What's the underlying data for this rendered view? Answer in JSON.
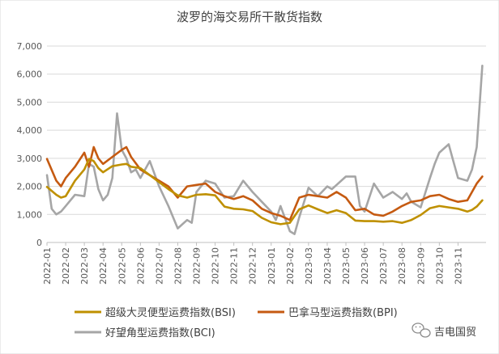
{
  "chart_data": {
    "type": "line",
    "title": "波罗的海交易所干散货指数",
    "xlabel": "",
    "ylabel": "",
    "ylim": [
      0,
      7000
    ],
    "yticks": [
      0,
      1000,
      2000,
      3000,
      4000,
      5000,
      6000,
      7000
    ],
    "ytick_labels": [
      "0",
      "1,000",
      "2,000",
      "3,000",
      "4,000",
      "5,000",
      "6,000",
      "7,000"
    ],
    "x_range": [
      0,
      47
    ],
    "x_ticks": [
      "2022-01",
      "2022-02",
      "2022-03",
      "2022-04",
      "2022-05",
      "2022-06",
      "2022-07",
      "2022-08",
      "2022-09",
      "2022-10",
      "2022-11",
      "2022-12",
      "2023-01",
      "2023-02",
      "2023-03",
      "2023-04",
      "2023-05",
      "2023-06",
      "2023-07",
      "2023-08",
      "2023-09",
      "2023-10",
      "2023-11"
    ],
    "legend_position": "bottom",
    "series": [
      {
        "name": "超级大灵便型运费指数(BSI)",
        "color": "#BF9000",
        "x": [
          0,
          1,
          1.5,
          2,
          3,
          4,
          4.5,
          5,
          5.5,
          6,
          7,
          8,
          8.5,
          9,
          10,
          11,
          12,
          13,
          14,
          15,
          16,
          17,
          18,
          19,
          20,
          21,
          22,
          23,
          24,
          25,
          26,
          27,
          28,
          29,
          30,
          31,
          32,
          33,
          34,
          35,
          36,
          37,
          38,
          39,
          40,
          41,
          42,
          43,
          44,
          45,
          45.5,
          46,
          46.6
        ],
        "y": [
          1980,
          1700,
          1600,
          1650,
          2200,
          2600,
          2980,
          2900,
          2650,
          2500,
          2720,
          2780,
          2800,
          2700,
          2650,
          2400,
          2150,
          1900,
          1680,
          1600,
          1700,
          1720,
          1680,
          1280,
          1200,
          1180,
          1120,
          880,
          720,
          650,
          700,
          1180,
          1320,
          1180,
          1050,
          1150,
          1050,
          780,
          760,
          760,
          740,
          760,
          700,
          800,
          980,
          1220,
          1300,
          1250,
          1200,
          1100,
          1160,
          1280,
          1500
        ]
      },
      {
        "name": "巴拿马型运费指数(BPI)",
        "color": "#C55A11",
        "x": [
          0,
          1,
          1.5,
          2,
          3,
          4,
          4.5,
          5,
          5.5,
          6,
          7,
          8,
          8.5,
          9,
          10,
          11,
          12,
          13,
          14,
          15,
          16,
          17,
          18,
          19,
          20,
          21,
          22,
          23,
          24,
          25,
          26,
          27,
          28,
          29,
          30,
          31,
          32,
          33,
          34,
          35,
          36,
          37,
          38,
          39,
          40,
          41,
          42,
          43,
          44,
          45,
          45.5,
          46,
          46.6
        ],
        "y": [
          2980,
          2200,
          2000,
          2300,
          2700,
          3200,
          2700,
          3400,
          3000,
          2800,
          3050,
          3300,
          3400,
          3050,
          2600,
          2400,
          2200,
          2000,
          1600,
          2000,
          2050,
          2100,
          1800,
          1650,
          1550,
          1650,
          1500,
          1200,
          1050,
          950,
          800,
          1600,
          1700,
          1650,
          1600,
          1800,
          1600,
          1150,
          1200,
          1000,
          950,
          1100,
          1300,
          1450,
          1500,
          1650,
          1700,
          1550,
          1450,
          1500,
          1800,
          2100,
          2350
        ]
      },
      {
        "name": "好望角型运费指数(BCI)",
        "color": "#A6A6A6",
        "x": [
          0,
          0.5,
          1,
          1.5,
          2,
          3,
          4,
          4.5,
          5,
          5.5,
          6,
          6.5,
          7,
          7.5,
          8,
          8.5,
          9,
          9.5,
          10,
          11,
          12,
          13,
          14,
          15,
          15.5,
          16,
          17,
          18,
          19,
          20,
          21,
          22,
          23,
          24,
          24.5,
          25,
          26,
          26.5,
          27,
          28,
          29,
          30,
          30.5,
          31,
          32,
          33,
          33.5,
          34,
          35,
          36,
          37,
          38,
          38.5,
          39,
          40,
          41,
          41.5,
          42,
          43,
          43.5,
          44,
          45,
          45.5,
          46,
          46.6
        ],
        "y": [
          2400,
          1200,
          1000,
          1100,
          1300,
          1700,
          1650,
          2800,
          2700,
          1900,
          1500,
          1700,
          2300,
          4600,
          3300,
          3000,
          2500,
          2600,
          2300,
          2900,
          2000,
          1300,
          500,
          800,
          700,
          1800,
          2200,
          2100,
          1600,
          1650,
          2200,
          1800,
          1450,
          1100,
          800,
          1300,
          400,
          300,
          900,
          1950,
          1650,
          2000,
          1900,
          2050,
          2350,
          2350,
          1300,
          1100,
          2100,
          1600,
          1800,
          1550,
          1750,
          1450,
          1250,
          2300,
          2800,
          3200,
          3500,
          2900,
          2300,
          2200,
          2600,
          3400,
          6300
        ]
      }
    ]
  },
  "watermark": {
    "text": "吉电国贸",
    "icon": "wechat-icon"
  }
}
